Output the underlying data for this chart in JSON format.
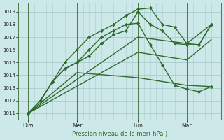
{
  "background_color": "#cce8e8",
  "grid_color": "#aacccc",
  "line_color": "#2d6b2d",
  "xlabel": "Pression niveau de la mer( hPa )",
  "yticks": [
    1011,
    1012,
    1013,
    1014,
    1015,
    1016,
    1017,
    1018,
    1019
  ],
  "ylim": [
    1010.5,
    1019.7
  ],
  "xlim": [
    -0.3,
    16.3
  ],
  "xtick_labels": [
    "Dim",
    "Mer",
    "Lun",
    "Mar"
  ],
  "xtick_positions": [
    0.5,
    4.5,
    9.5,
    13.5
  ],
  "vline_positions": [
    0.5,
    4.5,
    9.5,
    13.5
  ],
  "series": [
    {
      "x": [
        0.5,
        1.5,
        2.5,
        3.5,
        4.5,
        5.5,
        6.5,
        7.5,
        8.5,
        9.5,
        10.5,
        11.5,
        12.5,
        13.5,
        14.5,
        15.5
      ],
      "y": [
        1011,
        1012,
        1013.5,
        1015,
        1016,
        1017,
        1017.5,
        1018,
        1018.7,
        1019.2,
        1019.3,
        1018,
        1017.8,
        1016.5,
        1016.4,
        1018.0
      ],
      "marker": "D",
      "markersize": 2.2,
      "linewidth": 1.0
    },
    {
      "x": [
        0.5,
        1.5,
        2.5,
        3.5,
        4.5,
        5.5,
        6.5,
        7.5,
        8.5,
        9.5,
        10.5,
        11.5,
        12.5,
        13.5,
        14.5,
        15.5
      ],
      "y": [
        1011,
        1012,
        1013.5,
        1014.5,
        1015,
        1015.5,
        1016.5,
        1017.2,
        1017.5,
        1019.0,
        1018.0,
        1017.5,
        1016.5,
        1016.4,
        1016.4,
        1018.0
      ],
      "marker": "D",
      "markersize": 2.2,
      "linewidth": 1.0
    },
    {
      "x": [
        0.5,
        9.5,
        13.5,
        15.5
      ],
      "y": [
        1011,
        1017.0,
        1016.5,
        1018.0
      ],
      "marker": null,
      "markersize": 0,
      "linewidth": 1.0
    },
    {
      "x": [
        0.5,
        9.5,
        13.5,
        15.5
      ],
      "y": [
        1011,
        1015.8,
        1015.2,
        1016.8
      ],
      "marker": null,
      "markersize": 0,
      "linewidth": 1.0
    },
    {
      "x": [
        0.5,
        4.5,
        9.5,
        13.5,
        15.5
      ],
      "y": [
        1011,
        1014.2,
        1013.8,
        1013.2,
        1013.1
      ],
      "marker": null,
      "markersize": 0,
      "linewidth": 1.0
    },
    {
      "x": [
        0.5,
        1.5,
        2.5,
        3.5,
        4.5,
        5.5,
        6.5,
        7.5,
        8.5,
        9.5,
        10.5,
        11.5,
        12.5,
        13.5,
        14.5,
        15.5
      ],
      "y": [
        1011,
        1012,
        1013.5,
        1014.5,
        1015,
        1016,
        1017,
        1017.5,
        1018,
        1018.1,
        1016.4,
        1014.8,
        1013.2,
        1012.9,
        1012.7,
        1013.1
      ],
      "marker": "D",
      "markersize": 2.2,
      "linewidth": 1.0
    }
  ]
}
